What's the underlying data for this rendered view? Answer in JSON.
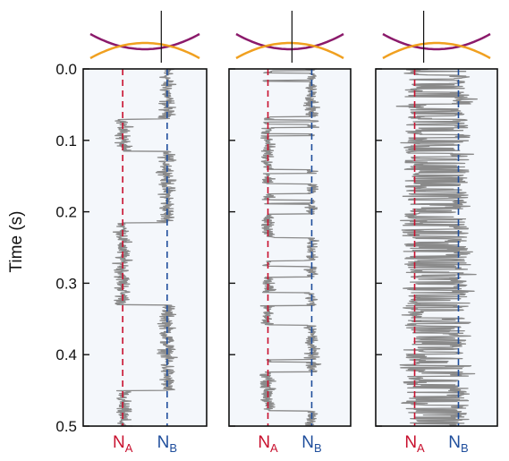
{
  "chart_data": {
    "type": "line",
    "ylabel": "Time (s)",
    "ylim": [
      0.5,
      0.0
    ],
    "yticks": [
      "0.0",
      "0.1",
      "0.2",
      "0.3",
      "0.4",
      "0.5"
    ],
    "ytick_values": [
      0.0,
      0.1,
      0.2,
      0.3,
      0.4,
      0.5
    ],
    "reference_lines": [
      {
        "name": "N",
        "subscript": "A",
        "color": "#c8102e"
      },
      {
        "name": "N",
        "subscript": "B",
        "color": "#1f4e9c"
      }
    ],
    "colors": {
      "trace": "#8a8a8a",
      "panel_bg": "#f4f7fb",
      "upper_curve": "#8b1a6b",
      "lower_curve": "#f0a020"
    },
    "panels": [
      {
        "id": "panel-1",
        "crossing_marker_offset": 0.15,
        "segments": [
          {
            "state": "B",
            "t0": 0.0,
            "t1": 0.07
          },
          {
            "state": "A",
            "t0": 0.07,
            "t1": 0.115
          },
          {
            "state": "B",
            "t0": 0.115,
            "t1": 0.215
          },
          {
            "state": "A",
            "t0": 0.215,
            "t1": 0.33
          },
          {
            "state": "B",
            "t0": 0.33,
            "t1": 0.45
          },
          {
            "state": "A",
            "t0": 0.45,
            "t1": 0.5
          }
        ],
        "switch_rate_hz": 0,
        "noise": 0.07
      },
      {
        "id": "panel-2",
        "crossing_marker_offset": 0.02,
        "segments": [],
        "switch_rate_hz": 70,
        "noise": 0.06
      },
      {
        "id": "panel-3",
        "crossing_marker_offset": -0.12,
        "segments": [],
        "switch_rate_hz": 500,
        "noise": 0.12
      }
    ]
  }
}
